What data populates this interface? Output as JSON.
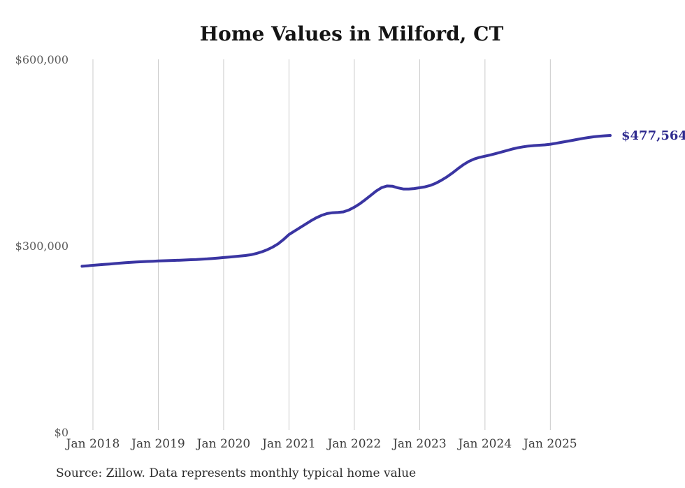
{
  "page": {
    "background_color": "#ffffff"
  },
  "chart_data": {
    "type": "line",
    "title": "Home Values in Milford, CT",
    "source": "Source: Zillow. Data represents monthly typical home value",
    "end_label": "$477,564",
    "end_value": 477564,
    "x_start": "2017-11",
    "x_interval": "month",
    "x_tick_labels": [
      "Jan 2018",
      "Jan 2019",
      "Jan 2020",
      "Jan 2021",
      "Jan 2022",
      "Jan 2023",
      "Jan 2024",
      "Jan 2025"
    ],
    "x_tick_month_indices": [
      2,
      14,
      26,
      38,
      50,
      62,
      74,
      86
    ],
    "y_ticks": [
      {
        "value": 0,
        "label": "$0"
      },
      {
        "value": 300000,
        "label": "$300,000"
      },
      {
        "value": 600000,
        "label": "$600,000"
      }
    ],
    "ylim": [
      0,
      600000
    ],
    "xlabel": "",
    "ylabel": "",
    "grid": "vertical-only",
    "legend": "none",
    "line_color": "#3a35a2",
    "end_label_color": "#2f2b8f",
    "grid_color": "#cacaca",
    "series": [
      {
        "name": "Typical home value",
        "values": [
          267000,
          267800,
          268500,
          269200,
          269900,
          270600,
          271300,
          272000,
          272700,
          273300,
          273800,
          274300,
          274700,
          275100,
          275500,
          275800,
          276100,
          276400,
          276700,
          277100,
          277500,
          277900,
          278400,
          278900,
          279500,
          280200,
          281000,
          281800,
          282600,
          283400,
          284300,
          285500,
          287500,
          290200,
          293600,
          297800,
          303000,
          310000,
          318000,
          323500,
          329000,
          334500,
          340000,
          345000,
          349000,
          351800,
          353200,
          353600,
          354500,
          357500,
          362000,
          367500,
          374000,
          381000,
          388000,
          393500,
          396200,
          395800,
          393200,
          391400,
          391200,
          392000,
          393400,
          394800,
          397200,
          400800,
          405400,
          410800,
          417000,
          423800,
          430200,
          435600,
          439600,
          442200,
          444200,
          446200,
          448400,
          450800,
          453200,
          455600,
          457600,
          459200,
          460400,
          461200,
          461800,
          462400,
          463400,
          464800,
          466400,
          468000,
          469600,
          471200,
          472800,
          474200,
          475400,
          476300,
          477000,
          477564
        ]
      }
    ]
  }
}
